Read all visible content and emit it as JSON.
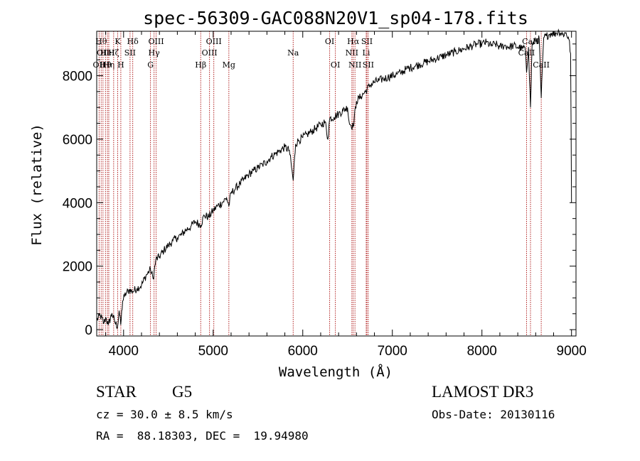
{
  "chart_data": {
    "type": "line",
    "title": "spec-56309-GAC088N20V1_sp04-178.fits",
    "xlabel": "Wavelength (Å)",
    "ylabel": "Flux (relative)",
    "xlim": [
      3700,
      9050
    ],
    "ylim": [
      -200,
      9400
    ],
    "xticks": [
      4000,
      5000,
      6000,
      7000,
      8000,
      9000
    ],
    "xtick_labels": [
      "4000",
      "5000",
      "6000",
      "7000",
      "8000",
      "9000"
    ],
    "yticks": [
      0,
      2000,
      4000,
      6000,
      8000
    ],
    "ytick_labels": [
      "0",
      "2000",
      "4000",
      "6000",
      "8000"
    ],
    "series": [
      {
        "name": "flux",
        "color": "#000000",
        "x": [
          3700,
          3740,
          3780,
          3800,
          3830,
          3870,
          3900,
          3933,
          3950,
          3968,
          3990,
          4010,
          4030,
          4060,
          4100,
          4150,
          4200,
          4250,
          4300,
          4330,
          4360,
          4400,
          4450,
          4500,
          4550,
          4600,
          4650,
          4700,
          4750,
          4800,
          4861,
          4900,
          4950,
          5000,
          5050,
          5100,
          5150,
          5175,
          5200,
          5250,
          5300,
          5350,
          5400,
          5450,
          5500,
          5550,
          5600,
          5650,
          5700,
          5750,
          5800,
          5850,
          5893,
          5920,
          5950,
          6000,
          6050,
          6100,
          6150,
          6200,
          6250,
          6280,
          6300,
          6350,
          6400,
          6450,
          6500,
          6520,
          6563,
          6600,
          6650,
          6700,
          6750,
          6800,
          6850,
          6900,
          6950,
          7000,
          7050,
          7100,
          7150,
          7200,
          7250,
          7300,
          7350,
          7400,
          7450,
          7500,
          7550,
          7600,
          7650,
          7700,
          7750,
          7800,
          7850,
          7900,
          7950,
          8000,
          8050,
          8100,
          8150,
          8200,
          8250,
          8300,
          8350,
          8400,
          8450,
          8480,
          8498,
          8520,
          8542,
          8560,
          8600,
          8640,
          8662,
          8690,
          8720,
          8750,
          8780,
          8800,
          8830,
          8860,
          8900,
          8940,
          8970,
          8990,
          9000
        ],
        "values": [
          300,
          450,
          200,
          380,
          150,
          520,
          250,
          100,
          600,
          150,
          900,
          1050,
          1150,
          1250,
          1200,
          1300,
          1400,
          1700,
          1900,
          1600,
          2200,
          2300,
          2500,
          2650,
          2800,
          2900,
          3000,
          3150,
          3250,
          3400,
          3300,
          3600,
          3550,
          3750,
          3900,
          4000,
          4150,
          3900,
          4300,
          4450,
          4600,
          4750,
          4900,
          5000,
          5100,
          5200,
          5300,
          5450,
          5550,
          5650,
          5750,
          5650,
          4700,
          5850,
          5950,
          6050,
          6150,
          6250,
          6350,
          6450,
          6550,
          6000,
          6650,
          6700,
          6800,
          6900,
          7000,
          6500,
          6400,
          7200,
          7350,
          7500,
          7700,
          7800,
          7850,
          7900,
          7950,
          8000,
          8050,
          8100,
          8200,
          8250,
          8300,
          8350,
          8400,
          8450,
          8500,
          8550,
          8600,
          8650,
          8700,
          8750,
          8800,
          8850,
          8900,
          8950,
          9000,
          9000,
          9050,
          8950,
          9000,
          8900,
          8950,
          8900,
          8950,
          8900,
          8850,
          8900,
          8100,
          8900,
          7000,
          9000,
          9100,
          9150,
          7300,
          9200,
          9250,
          9300,
          9350,
          9300,
          9350,
          9400,
          9300,
          9350,
          9150,
          8700,
          4000
        ]
      }
    ],
    "spectral_lines": [
      {
        "x": 3727,
        "label": "OII",
        "row": 2
      },
      {
        "x": 3750,
        "label": "Hθ",
        "row": 0
      },
      {
        "x": 3770,
        "label": "OII",
        "row": 1
      },
      {
        "x": 3798,
        "label": "Hθ",
        "row": 2
      },
      {
        "x": 3820,
        "label": "HeI",
        "row": 1
      },
      {
        "x": 3835,
        "label": "Hη",
        "row": 2
      },
      {
        "x": 3889,
        "label": "Hζ",
        "row": 1
      },
      {
        "x": 3934,
        "label": "K",
        "row": 0
      },
      {
        "x": 3969,
        "label": "H",
        "row": 2
      },
      {
        "x": 4072,
        "label": "SII",
        "row": 1
      },
      {
        "x": 4102,
        "label": "Hδ",
        "row": 0
      },
      {
        "x": 4300,
        "label": "G",
        "row": 2
      },
      {
        "x": 4340,
        "label": "Hγ",
        "row": 1
      },
      {
        "x": 4363,
        "label": "OIII",
        "row": 0
      },
      {
        "x": 4861,
        "label": "Hβ",
        "row": 2
      },
      {
        "x": 4959,
        "label": "OIII",
        "row": 1
      },
      {
        "x": 5007,
        "label": "OIII",
        "row": 0
      },
      {
        "x": 5175,
        "label": "Mg",
        "row": 2
      },
      {
        "x": 5893,
        "label": "Na",
        "row": 1
      },
      {
        "x": 6300,
        "label": "OI",
        "row": 0
      },
      {
        "x": 6364,
        "label": "OI",
        "row": 2
      },
      {
        "x": 6548,
        "label": "NII",
        "row": 1
      },
      {
        "x": 6563,
        "label": "Hα",
        "row": 0
      },
      {
        "x": 6583,
        "label": "NII",
        "row": 2
      },
      {
        "x": 6708,
        "label": "Li",
        "row": 1
      },
      {
        "x": 6716,
        "label": "SII",
        "row": 0
      },
      {
        "x": 6731,
        "label": "SII",
        "row": 2
      },
      {
        "x": 8498,
        "label": "CaII",
        "row": 1
      },
      {
        "x": 8542,
        "label": "CaII",
        "row": 0
      },
      {
        "x": 8662,
        "label": "CaII",
        "row": 2
      }
    ]
  },
  "info": {
    "object_class": "STAR",
    "subclass": "G5",
    "survey": "LAMOST DR3",
    "cz": "cz = 30.0 ± 8.5 km/s",
    "obs_date": "Obs-Date: 20130116",
    "coords": "RA =  88.18303, DEC =  19.94980"
  },
  "colors": {
    "line_marker": "#b22222",
    "spectrum": "#000000"
  }
}
